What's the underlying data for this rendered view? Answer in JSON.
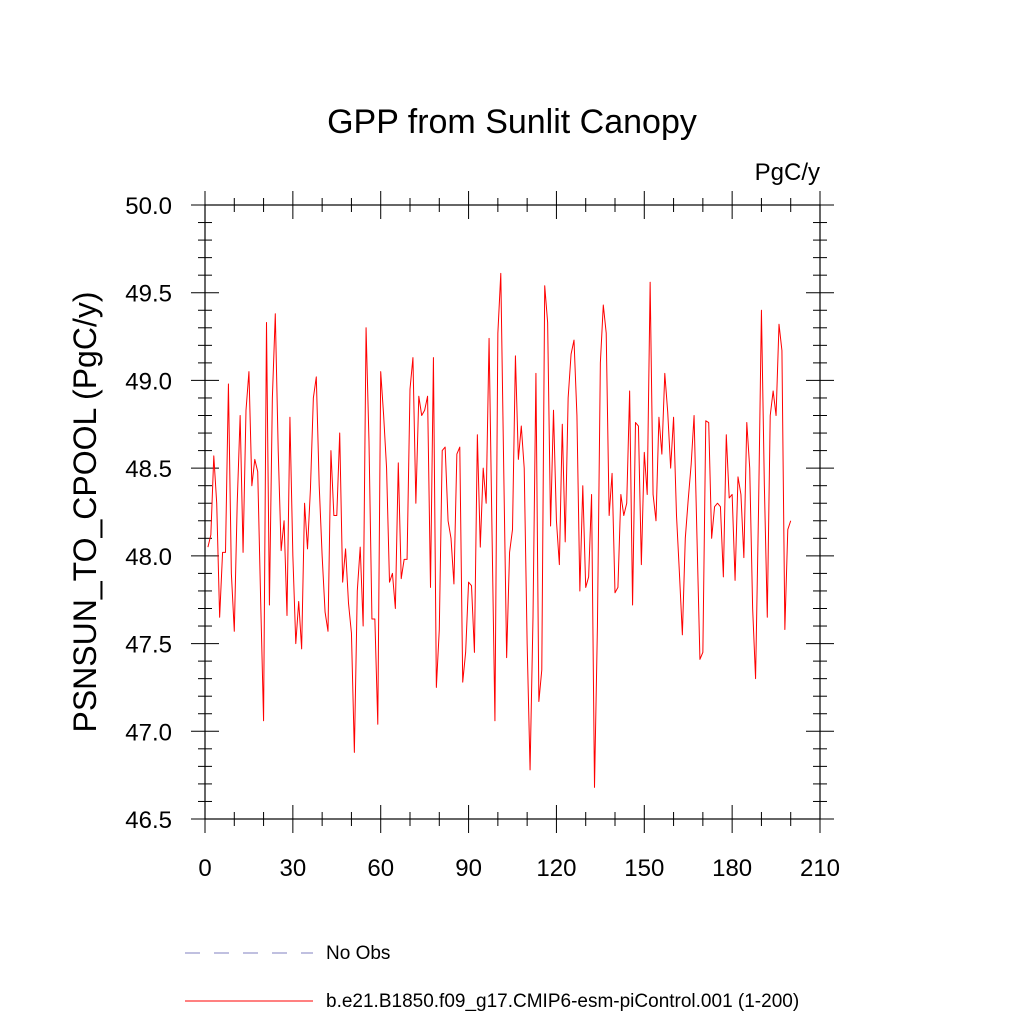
{
  "chart_data": {
    "type": "line",
    "title": "GPP from Sunlit Canopy",
    "units": "PgC/y",
    "xlabel": "",
    "ylabel": "PSNSUN_TO_CPOOL  (PgC/y)",
    "xlim": [
      0,
      210
    ],
    "ylim": [
      46.5,
      50.0
    ],
    "xticks": [
      0,
      30,
      60,
      90,
      120,
      150,
      180,
      210
    ],
    "xtick_labels": [
      "0",
      "30",
      "60",
      "90",
      "120",
      "150",
      "180",
      "210"
    ],
    "yticks": [
      46.5,
      47.0,
      47.5,
      48.0,
      48.5,
      49.0,
      49.5,
      50.0
    ],
    "ytick_labels": [
      "46.5",
      "47.0",
      "47.5",
      "48.0",
      "48.5",
      "49.0",
      "49.5",
      "50.0"
    ],
    "colors": {
      "model": "#ff0000",
      "obs": "#8080c0",
      "axis": "#000000"
    },
    "legend": [
      {
        "label": "No Obs",
        "style": "dashed",
        "color": "#8080c0"
      },
      {
        "label": "b.e21.B1850.f09_g17.CMIP6-esm-piControl.001 (1-200)",
        "style": "solid",
        "color": "#ff0000"
      }
    ],
    "series": [
      {
        "name": "b.e21.B1850.f09_g17.CMIP6-esm-piControl.001 (1-200)",
        "x_start": 1,
        "values": [
          48.05,
          48.12,
          48.57,
          48.3,
          47.65,
          48.02,
          48.02,
          48.98,
          47.9,
          47.57,
          48.3,
          48.8,
          48.02,
          48.83,
          49.05,
          48.4,
          48.55,
          48.48,
          47.75,
          47.06,
          49.33,
          47.72,
          48.9,
          49.38,
          48.6,
          48.03,
          48.2,
          47.66,
          48.79,
          48.0,
          47.5,
          47.74,
          47.47,
          48.3,
          48.04,
          48.38,
          48.9,
          49.02,
          48.4,
          48.0,
          47.68,
          47.57,
          48.6,
          48.23,
          48.23,
          48.7,
          47.85,
          48.04,
          47.73,
          47.56,
          46.88,
          47.8,
          48.05,
          47.6,
          49.3,
          48.65,
          47.64,
          47.64,
          47.04,
          49.05,
          48.8,
          48.5,
          47.85,
          47.9,
          47.7,
          48.53,
          47.87,
          47.98,
          47.98,
          48.95,
          49.13,
          48.3,
          48.91,
          48.8,
          48.83,
          48.91,
          47.82,
          49.13,
          47.25,
          47.58,
          48.6,
          48.62,
          48.2,
          48.1,
          47.84,
          48.58,
          48.62,
          47.28,
          47.45,
          47.85,
          47.83,
          47.45,
          48.69,
          48.05,
          48.5,
          48.3,
          49.24,
          48.14,
          47.06,
          49.27,
          49.61,
          48.5,
          47.42,
          48.02,
          48.15,
          49.14,
          48.55,
          48.74,
          48.5,
          47.5,
          46.78,
          47.65,
          49.04,
          47.17,
          47.35,
          49.54,
          49.33,
          48.17,
          48.83,
          48.2,
          47.95,
          48.75,
          48.08,
          48.9,
          49.15,
          49.23,
          48.8,
          47.8,
          48.4,
          47.82,
          47.88,
          48.35,
          46.68,
          47.6,
          49.1,
          49.43,
          49.27,
          48.23,
          48.47,
          47.79,
          47.82,
          48.35,
          48.23,
          48.3,
          48.94,
          47.72,
          48.76,
          48.74,
          47.95,
          48.59,
          48.35,
          49.56,
          48.35,
          48.2,
          48.79,
          48.58,
          49.04,
          48.82,
          48.5,
          48.79,
          48.23,
          47.9,
          47.55,
          48.1,
          48.32,
          48.52,
          48.8,
          48.1,
          47.41,
          47.45,
          48.77,
          48.76,
          48.1,
          48.28,
          48.3,
          48.28,
          47.88,
          48.69,
          48.33,
          48.35,
          47.86,
          48.45,
          48.35,
          47.99,
          48.76,
          48.5,
          47.7,
          47.3,
          48.25,
          49.4,
          48.4,
          47.65,
          48.8,
          48.94,
          48.8,
          49.32,
          49.17,
          47.58,
          48.15,
          48.2
        ]
      }
    ]
  }
}
